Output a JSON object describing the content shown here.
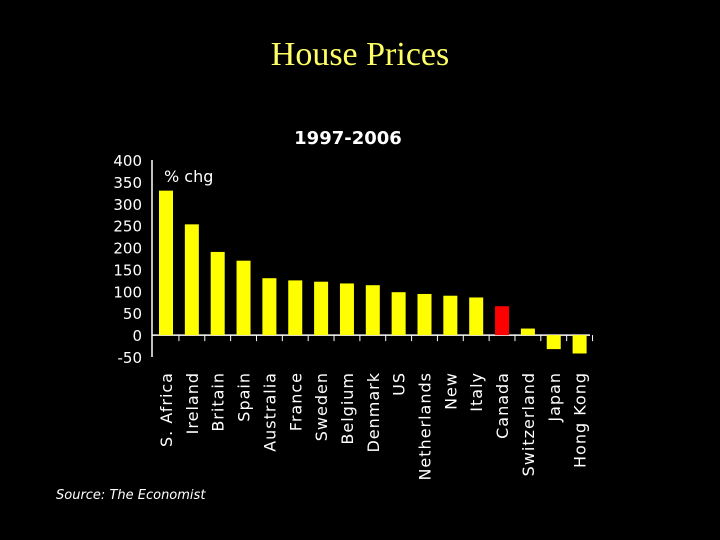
{
  "slide": {
    "title": "House Prices",
    "source": "Source: The Economist"
  },
  "chart_data": {
    "type": "bar",
    "title": "1997-2006",
    "ylabel": "% chg",
    "xlabel": "",
    "ylim": [
      -50,
      400
    ],
    "yticks": [
      400,
      350,
      300,
      250,
      200,
      150,
      100,
      50,
      0,
      -50
    ],
    "categories": [
      "S. Africa",
      "Ireland",
      "Britain",
      "Spain",
      "Australia",
      "France",
      "Sweden",
      "Belgium",
      "Denmark",
      "US",
      "Netherlands",
      "New",
      "Italy",
      "Canada",
      "Switzerland",
      "Japan",
      "Hong Kong"
    ],
    "values": [
      330,
      253,
      190,
      170,
      130,
      125,
      122,
      118,
      114,
      98,
      94,
      90,
      86,
      66,
      15,
      -32,
      -42
    ],
    "colors": {
      "bar": "#ffff00",
      "highlight": "#ff0000",
      "highlight_category": "Canada",
      "text": "#ffffff",
      "axis": "#ffffff"
    },
    "grid": false
  }
}
